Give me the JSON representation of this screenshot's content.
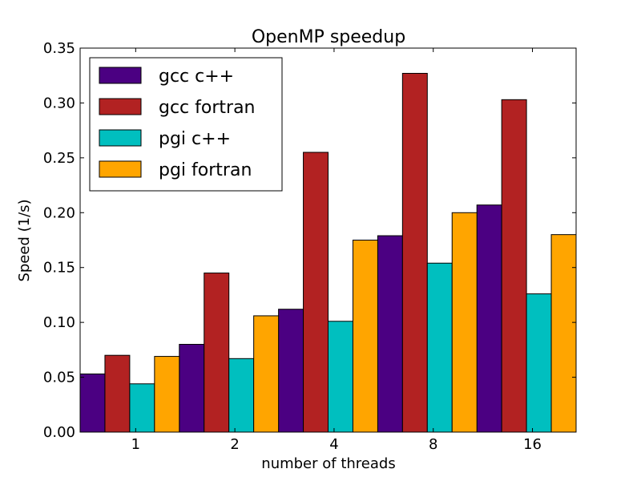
{
  "chart_data": {
    "type": "bar",
    "title": "OpenMP speedup",
    "xlabel": "number of threads",
    "ylabel": "Speed (1/s)",
    "categories": [
      "1",
      "2",
      "4",
      "8",
      "16"
    ],
    "ylim": [
      0,
      0.35
    ],
    "yticks": [
      "0.00",
      "0.05",
      "0.10",
      "0.15",
      "0.20",
      "0.25",
      "0.30",
      "0.35"
    ],
    "grid": false,
    "legend_position": "top-left",
    "series": [
      {
        "name": "gcc c++",
        "color": "#4b0082",
        "values": [
          0.053,
          0.08,
          0.112,
          0.179,
          0.207
        ]
      },
      {
        "name": "gcc fortran",
        "color": "#b22222",
        "values": [
          0.07,
          0.145,
          0.255,
          0.327,
          0.303
        ]
      },
      {
        "name": "pgi c++",
        "color": "#00bfbf",
        "values": [
          0.044,
          0.067,
          0.101,
          0.154,
          0.126
        ]
      },
      {
        "name": "pgi fortran",
        "color": "#ffa500",
        "values": [
          0.069,
          0.106,
          0.175,
          0.2,
          0.18
        ]
      }
    ]
  }
}
